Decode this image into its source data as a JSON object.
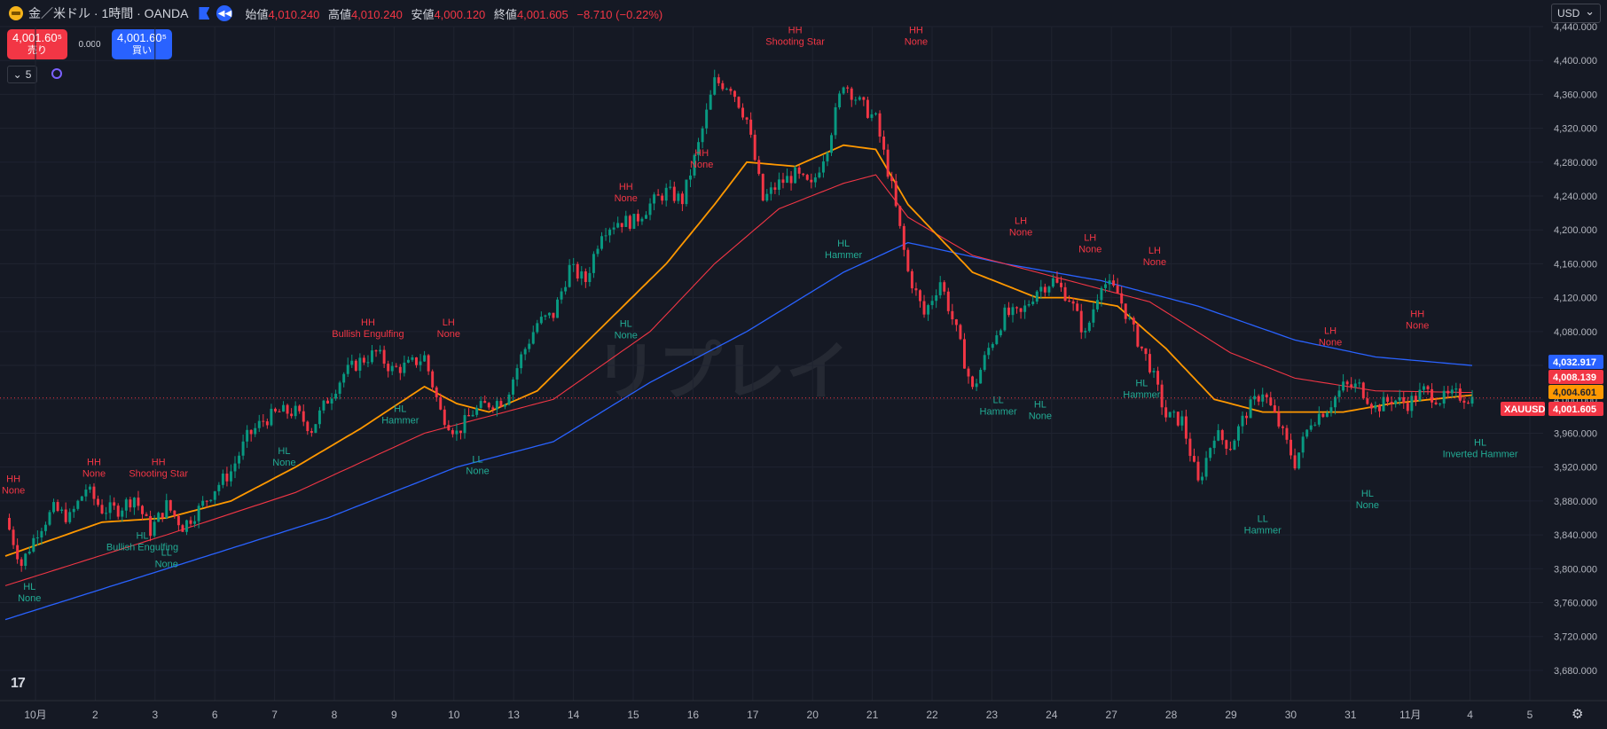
{
  "header": {
    "symbol": "金／米ドル · 1時間 · OANDA",
    "open_label": "始値",
    "open": "4,010.240",
    "high_label": "高値",
    "high": "4,010.240",
    "low_label": "安値",
    "low": "4,000.120",
    "close_label": "終値",
    "close": "4,001.605",
    "change": "−8.710 (−0.22%)"
  },
  "trade": {
    "sell_price": "4,001.60⁵",
    "sell_label": "売り",
    "spread": "0.000",
    "buy_price": "4,001.60⁵",
    "buy_label": "買い"
  },
  "collapse_count": "5",
  "currency": "USD",
  "watermark": "リプレイ",
  "colors": {
    "background": "#151924",
    "up": "#089981",
    "down": "#f23645",
    "ema_orange": "#ff9800",
    "ema_red": "#f23645",
    "ema_blue": "#2962ff"
  },
  "chart_data": {
    "type": "candlestick",
    "y_axis": {
      "min": 3660,
      "max": 4440,
      "ticks": [
        3680,
        3720,
        3760,
        3800,
        3840,
        3880,
        3920,
        3960,
        4000,
        4040,
        4080,
        4120,
        4160,
        4200,
        4240,
        4280,
        4320,
        4360,
        4400,
        4440
      ],
      "tick_labels": [
        "3,680.000",
        "3,720.000",
        "3,760.000",
        "3,800.000",
        "3,840.000",
        "3,880.000",
        "3,920.000",
        "3,960.000",
        "4,000.000",
        "4,040.000",
        "4,080.000",
        "4,120.000",
        "4,160.000",
        "4,200.000",
        "4,240.000",
        "4,280.000",
        "4,320.000",
        "4,360.000",
        "4,400.000",
        "4,440.000"
      ]
    },
    "x_axis": {
      "labels": [
        "10月",
        "2",
        "3",
        "6",
        "7",
        "8",
        "9",
        "10",
        "13",
        "14",
        "15",
        "16",
        "17",
        "20",
        "21",
        "22",
        "23",
        "24",
        "27",
        "28",
        "29",
        "30",
        "31",
        "11月",
        "4",
        "5"
      ]
    },
    "price_path": [
      [
        0,
        3860
      ],
      [
        1,
        3805
      ],
      [
        2,
        3845
      ],
      [
        3,
        3870
      ],
      [
        4,
        3860
      ],
      [
        5,
        3895
      ],
      [
        6,
        3870
      ],
      [
        7,
        3870
      ],
      [
        8,
        3885
      ],
      [
        9,
        3845
      ],
      [
        10,
        3875
      ],
      [
        11,
        3850
      ],
      [
        12,
        3870
      ],
      [
        13,
        3895
      ],
      [
        14,
        3915
      ],
      [
        15,
        3955
      ],
      [
        16,
        3975
      ],
      [
        17,
        3985
      ],
      [
        18,
        3985
      ],
      [
        19,
        3965
      ],
      [
        20,
        4000
      ],
      [
        21,
        4030
      ],
      [
        22,
        4045
      ],
      [
        23,
        4055
      ],
      [
        24,
        4035
      ],
      [
        25,
        4040
      ],
      [
        26,
        4050
      ],
      [
        27,
        3985
      ],
      [
        28,
        3960
      ],
      [
        29,
        3985
      ],
      [
        30,
        3995
      ],
      [
        31,
        4000
      ],
      [
        32,
        4050
      ],
      [
        33,
        4090
      ],
      [
        34,
        4100
      ],
      [
        35,
        4155
      ],
      [
        36,
        4140
      ],
      [
        37,
        4200
      ],
      [
        38,
        4210
      ],
      [
        39,
        4210
      ],
      [
        40,
        4230
      ],
      [
        41,
        4245
      ],
      [
        42,
        4235
      ],
      [
        43,
        4300
      ],
      [
        44,
        4375
      ],
      [
        45,
        4370
      ],
      [
        46,
        4330
      ],
      [
        47,
        4235
      ],
      [
        48,
        4255
      ],
      [
        49,
        4265
      ],
      [
        50,
        4250
      ],
      [
        51,
        4300
      ],
      [
        52,
        4375
      ],
      [
        53,
        4350
      ],
      [
        54,
        4330
      ],
      [
        55,
        4250
      ],
      [
        56,
        4150
      ],
      [
        57,
        4100
      ],
      [
        58,
        4140
      ],
      [
        59,
        4080
      ],
      [
        60,
        4010
      ],
      [
        61,
        4060
      ],
      [
        62,
        4100
      ],
      [
        63,
        4100
      ],
      [
        64,
        4130
      ],
      [
        65,
        4140
      ],
      [
        66,
        4120
      ],
      [
        67,
        4075
      ],
      [
        68,
        4140
      ],
      [
        69,
        4125
      ],
      [
        70,
        4080
      ],
      [
        71,
        4040
      ],
      [
        72,
        3980
      ],
      [
        73,
        3975
      ],
      [
        74,
        3900
      ],
      [
        75,
        3960
      ],
      [
        76,
        3945
      ],
      [
        77,
        3985
      ],
      [
        78,
        4010
      ],
      [
        79,
        3970
      ],
      [
        80,
        3925
      ],
      [
        81,
        3975
      ],
      [
        82,
        3990
      ],
      [
        83,
        4015
      ],
      [
        84,
        4015
      ],
      [
        85,
        3990
      ],
      [
        86,
        4000
      ],
      [
        87,
        3995
      ],
      [
        88,
        4010
      ],
      [
        89,
        4000
      ],
      [
        90,
        4005
      ],
      [
        91,
        4001
      ]
    ],
    "ema_orange_path": [
      [
        0,
        3815
      ],
      [
        6,
        3855
      ],
      [
        10,
        3860
      ],
      [
        14,
        3880
      ],
      [
        18,
        3920
      ],
      [
        22,
        3965
      ],
      [
        26,
        4015
      ],
      [
        28,
        3995
      ],
      [
        30,
        3985
      ],
      [
        33,
        4010
      ],
      [
        37,
        4085
      ],
      [
        41,
        4160
      ],
      [
        44,
        4230
      ],
      [
        46,
        4280
      ],
      [
        49,
        4275
      ],
      [
        52,
        4300
      ],
      [
        54,
        4295
      ],
      [
        56,
        4230
      ],
      [
        60,
        4150
      ],
      [
        64,
        4120
      ],
      [
        66,
        4120
      ],
      [
        69,
        4110
      ],
      [
        72,
        4060
      ],
      [
        75,
        4000
      ],
      [
        78,
        3985
      ],
      [
        80,
        3985
      ],
      [
        83,
        3985
      ],
      [
        86,
        3995
      ],
      [
        91,
        4005
      ]
    ],
    "ema_red_path": [
      [
        0,
        3780
      ],
      [
        10,
        3840
      ],
      [
        18,
        3890
      ],
      [
        26,
        3960
      ],
      [
        30,
        3980
      ],
      [
        34,
        4000
      ],
      [
        40,
        4080
      ],
      [
        44,
        4160
      ],
      [
        48,
        4225
      ],
      [
        52,
        4255
      ],
      [
        54,
        4265
      ],
      [
        56,
        4215
      ],
      [
        60,
        4170
      ],
      [
        66,
        4140
      ],
      [
        71,
        4115
      ],
      [
        76,
        4055
      ],
      [
        80,
        4025
      ],
      [
        85,
        4010
      ],
      [
        91,
        4008
      ]
    ],
    "ema_blue_path": [
      [
        0,
        3740
      ],
      [
        10,
        3800
      ],
      [
        20,
        3860
      ],
      [
        28,
        3920
      ],
      [
        34,
        3950
      ],
      [
        40,
        4020
      ],
      [
        46,
        4080
      ],
      [
        52,
        4150
      ],
      [
        56,
        4185
      ],
      [
        62,
        4160
      ],
      [
        68,
        4140
      ],
      [
        74,
        4110
      ],
      [
        80,
        4070
      ],
      [
        85,
        4050
      ],
      [
        91,
        4040
      ]
    ],
    "price_tags": [
      {
        "value": 4032.917,
        "label": "4,032.917",
        "color": "#2962ff"
      },
      {
        "value": 4008.139,
        "label": "4,008.139",
        "color": "#f23645"
      },
      {
        "value": 4004.601,
        "label": "4,004.601",
        "color": "#ff9800"
      },
      {
        "value": 4001.605,
        "label": "4,001.605",
        "color": "#f23645",
        "symbol": "XAUUSD"
      }
    ],
    "annotations": [
      {
        "i": 0.5,
        "y": 3875,
        "above": true,
        "lines": [
          "HH",
          "None"
        ]
      },
      {
        "i": 1.5,
        "y": 3790,
        "above": false,
        "lines": [
          "HL",
          "None"
        ]
      },
      {
        "i": 5.5,
        "y": 3895,
        "above": true,
        "lines": [
          "HH",
          "None"
        ]
      },
      {
        "i": 8.5,
        "y": 3850,
        "above": false,
        "lines": [
          "HL",
          "Bullish Engulfing"
        ]
      },
      {
        "i": 9.5,
        "y": 3895,
        "above": true,
        "lines": [
          "HH",
          "Shooting Star"
        ]
      },
      {
        "i": 10,
        "y": 3830,
        "above": false,
        "lines": [
          "LL",
          "None"
        ]
      },
      {
        "i": 17.3,
        "y": 3950,
        "above": false,
        "lines": [
          "HL",
          "None"
        ]
      },
      {
        "i": 22.5,
        "y": 4060,
        "above": true,
        "lines": [
          "HH",
          "Bullish Engulfing"
        ]
      },
      {
        "i": 24.5,
        "y": 4000,
        "above": false,
        "lines": [
          "HL",
          "Hammer"
        ]
      },
      {
        "i": 27.5,
        "y": 4060,
        "above": true,
        "lines": [
          "LH",
          "None"
        ]
      },
      {
        "i": 29.3,
        "y": 3940,
        "above": false,
        "lines": [
          "LL",
          "None"
        ]
      },
      {
        "i": 38.5,
        "y": 4220,
        "above": true,
        "lines": [
          "HH",
          "None"
        ]
      },
      {
        "i": 38.5,
        "y": 4100,
        "above": false,
        "lines": [
          "HL",
          "None"
        ]
      },
      {
        "i": 43.2,
        "y": 4260,
        "above": true,
        "lines": [
          "HH",
          "None"
        ]
      },
      {
        "i": 49,
        "y": 4405,
        "above": true,
        "lines": [
          "HH",
          "Shooting Star"
        ]
      },
      {
        "i": 52,
        "y": 4195,
        "above": false,
        "lines": [
          "HL",
          "Hammer"
        ]
      },
      {
        "i": 56.5,
        "y": 4405,
        "above": true,
        "lines": [
          "HH",
          "None"
        ]
      },
      {
        "i": 63,
        "y": 4180,
        "above": true,
        "lines": [
          "LH",
          "None"
        ]
      },
      {
        "i": 61.6,
        "y": 4010,
        "above": false,
        "lines": [
          "LL",
          "Hammer"
        ]
      },
      {
        "i": 64.2,
        "y": 4005,
        "above": false,
        "lines": [
          "HL",
          "None"
        ]
      },
      {
        "i": 67.3,
        "y": 4160,
        "above": true,
        "lines": [
          "LH",
          "None"
        ]
      },
      {
        "i": 71.3,
        "y": 4145,
        "above": true,
        "lines": [
          "LH",
          "None"
        ]
      },
      {
        "i": 70.5,
        "y": 4030,
        "above": false,
        "lines": [
          "HL",
          "Hammer"
        ]
      },
      {
        "i": 78,
        "y": 3870,
        "above": false,
        "lines": [
          "LL",
          "Hammer"
        ]
      },
      {
        "i": 82.2,
        "y": 4050,
        "above": true,
        "lines": [
          "LH",
          "None"
        ]
      },
      {
        "i": 84.5,
        "y": 3900,
        "above": false,
        "lines": [
          "HL",
          "None"
        ]
      },
      {
        "i": 87.6,
        "y": 4070,
        "above": true,
        "lines": [
          "HH",
          "None"
        ]
      },
      {
        "i": 91.5,
        "y": 3960,
        "above": false,
        "lines": [
          "HL",
          "Inverted Hammer"
        ]
      }
    ]
  }
}
